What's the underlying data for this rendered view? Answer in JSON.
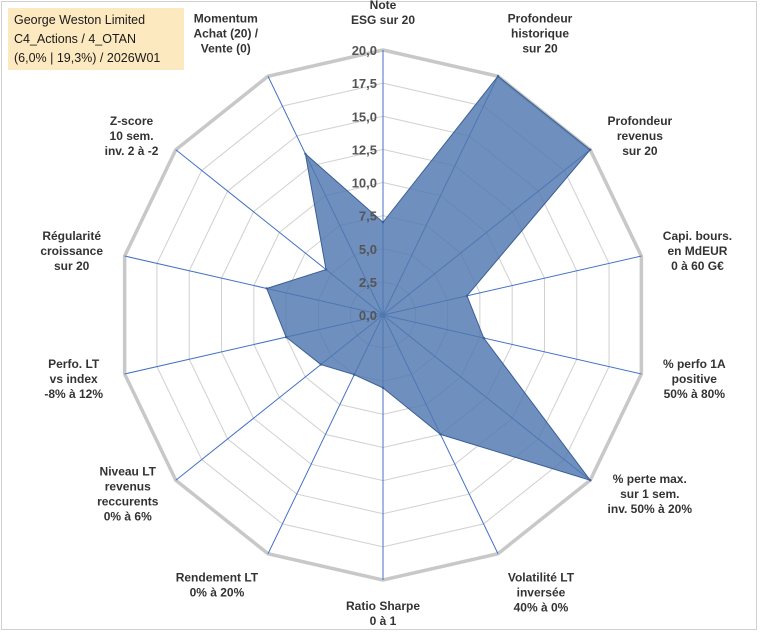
{
  "title_box": {
    "line1": "George Weston Limited",
    "line2": "C4_Actions / 4_OTAN",
    "line3": "(6,0% | 19,3%) / 2026W01"
  },
  "chart_data": {
    "type": "radar",
    "rmin": 0,
    "rmax": 20,
    "tick_step": 2.5,
    "tick_labels": [
      "0,0",
      "2,5",
      "5,0",
      "7,5",
      "10,0",
      "12,5",
      "15,0",
      "17,5",
      "20,0"
    ],
    "fill_color": "#4f78b0",
    "grid_color": "#d0d0d0",
    "spoke_color": "#4472c4",
    "categories": [
      [
        "Note",
        "ESG sur 20"
      ],
      [
        "Profondeur",
        "historique",
        "sur 20"
      ],
      [
        "Profondeur",
        "revenus",
        "sur 20"
      ],
      [
        "Capi. bours.",
        "en MdEUR",
        "0 à 60 G€"
      ],
      [
        "% perfo 1A",
        "positive",
        "50% à 80%"
      ],
      [
        "% perte max.",
        "sur 1 sem.",
        "inv. 50% à 20%"
      ],
      [
        "Volatilité LT",
        "inversée",
        "40% à 0%"
      ],
      [
        "Ratio Sharpe",
        "0 à 1"
      ],
      [
        "Rendement LT",
        "0% à 20%"
      ],
      [
        "Niveau LT",
        "revenus",
        "reccurents",
        "0% à 6%"
      ],
      [
        "Perfo. LT",
        "vs index",
        "-8% à 12%"
      ],
      [
        "Régularité",
        "croissance",
        "sur 20"
      ],
      [
        "Z-score",
        "10 sem.",
        "inv. 2 à -2"
      ],
      [
        "Momentum",
        "Achat (20) /",
        "Vente (0)"
      ]
    ],
    "values": [
      7.0,
      20.0,
      20.0,
      6.5,
      7.8,
      20.0,
      10.0,
      5.5,
      5.0,
      6.0,
      7.5,
      9.0,
      5.5,
      13.5
    ]
  }
}
